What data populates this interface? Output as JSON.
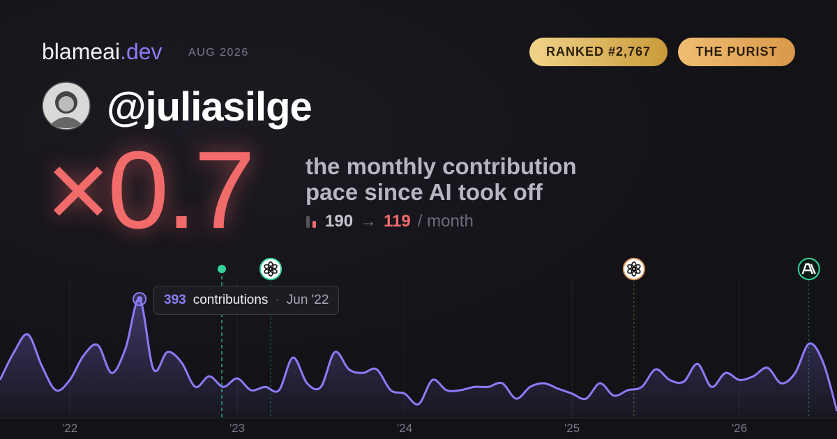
{
  "header": {
    "brand": "blameai",
    "brand_tld": ".dev",
    "date": "AUG 2026",
    "badges": [
      "RANKED #2,767",
      "THE PURIST"
    ]
  },
  "user": {
    "handle": "@juliasilge"
  },
  "headline": {
    "multiplier": "×0.7",
    "line1": "the monthly contribution",
    "line2": "pace since AI took off",
    "before": 190,
    "arrow": "→",
    "after": 119,
    "unit": "/ month"
  },
  "chart_data": {
    "type": "area",
    "color": "#8b7cf6",
    "x": [
      2021.583,
      2021.667,
      2021.75,
      2021.833,
      2021.917,
      2022,
      2022.083,
      2022.167,
      2022.25,
      2022.333,
      2022.417,
      2022.5,
      2022.583,
      2022.667,
      2022.75,
      2022.833,
      2022.917,
      2023,
      2023.083,
      2023.167,
      2023.25,
      2023.333,
      2023.417,
      2023.5,
      2023.583,
      2023.667,
      2023.75,
      2023.833,
      2023.917,
      2024,
      2024.083,
      2024.167,
      2024.25,
      2024.333,
      2024.417,
      2024.5,
      2024.583,
      2024.667,
      2024.75,
      2024.833,
      2024.917,
      2025,
      2025.083,
      2025.167,
      2025.25,
      2025.333,
      2025.417,
      2025.5,
      2025.583,
      2025.667,
      2025.75,
      2025.833,
      2025.917,
      2026,
      2026.083,
      2026.167,
      2026.25,
      2026.333,
      2026.417,
      2026.5,
      2026.583
    ],
    "values": [
      126,
      218,
      276,
      172,
      92,
      126,
      207,
      241,
      149,
      230,
      393,
      161,
      218,
      184,
      103,
      138,
      103,
      131,
      92,
      103,
      92,
      200,
      115,
      103,
      218,
      161,
      149,
      161,
      92,
      81,
      46,
      126,
      92,
      92,
      103,
      103,
      115,
      64,
      103,
      115,
      97,
      81,
      64,
      115,
      74,
      92,
      103,
      161,
      126,
      120,
      179,
      103,
      149,
      126,
      138,
      166,
      115,
      149,
      246,
      184,
      23
    ],
    "xlim": [
      2021.583,
      2026.583
    ],
    "ylim": [
      0,
      460
    ],
    "xticks": [
      {
        "value": 2022,
        "label": "'22"
      },
      {
        "value": 2023,
        "label": "'23"
      },
      {
        "value": 2024,
        "label": "'24"
      },
      {
        "value": 2025,
        "label": "'25"
      },
      {
        "value": 2026,
        "label": "'26"
      }
    ],
    "grid": true,
    "tooltip": {
      "index": 10,
      "text": "contributions",
      "separator": "·",
      "date": "Jun '22"
    },
    "events": [
      {
        "x": 2022.908,
        "color": "#34d399",
        "icon": "dot"
      },
      {
        "x": 2023.2,
        "color": "#34d399",
        "icon": "openai"
      },
      {
        "x": 2025.37,
        "color": "#e0a060",
        "icon": "openai"
      },
      {
        "x": 2026.415,
        "color": "#34d399",
        "icon": "anthropic"
      }
    ]
  }
}
